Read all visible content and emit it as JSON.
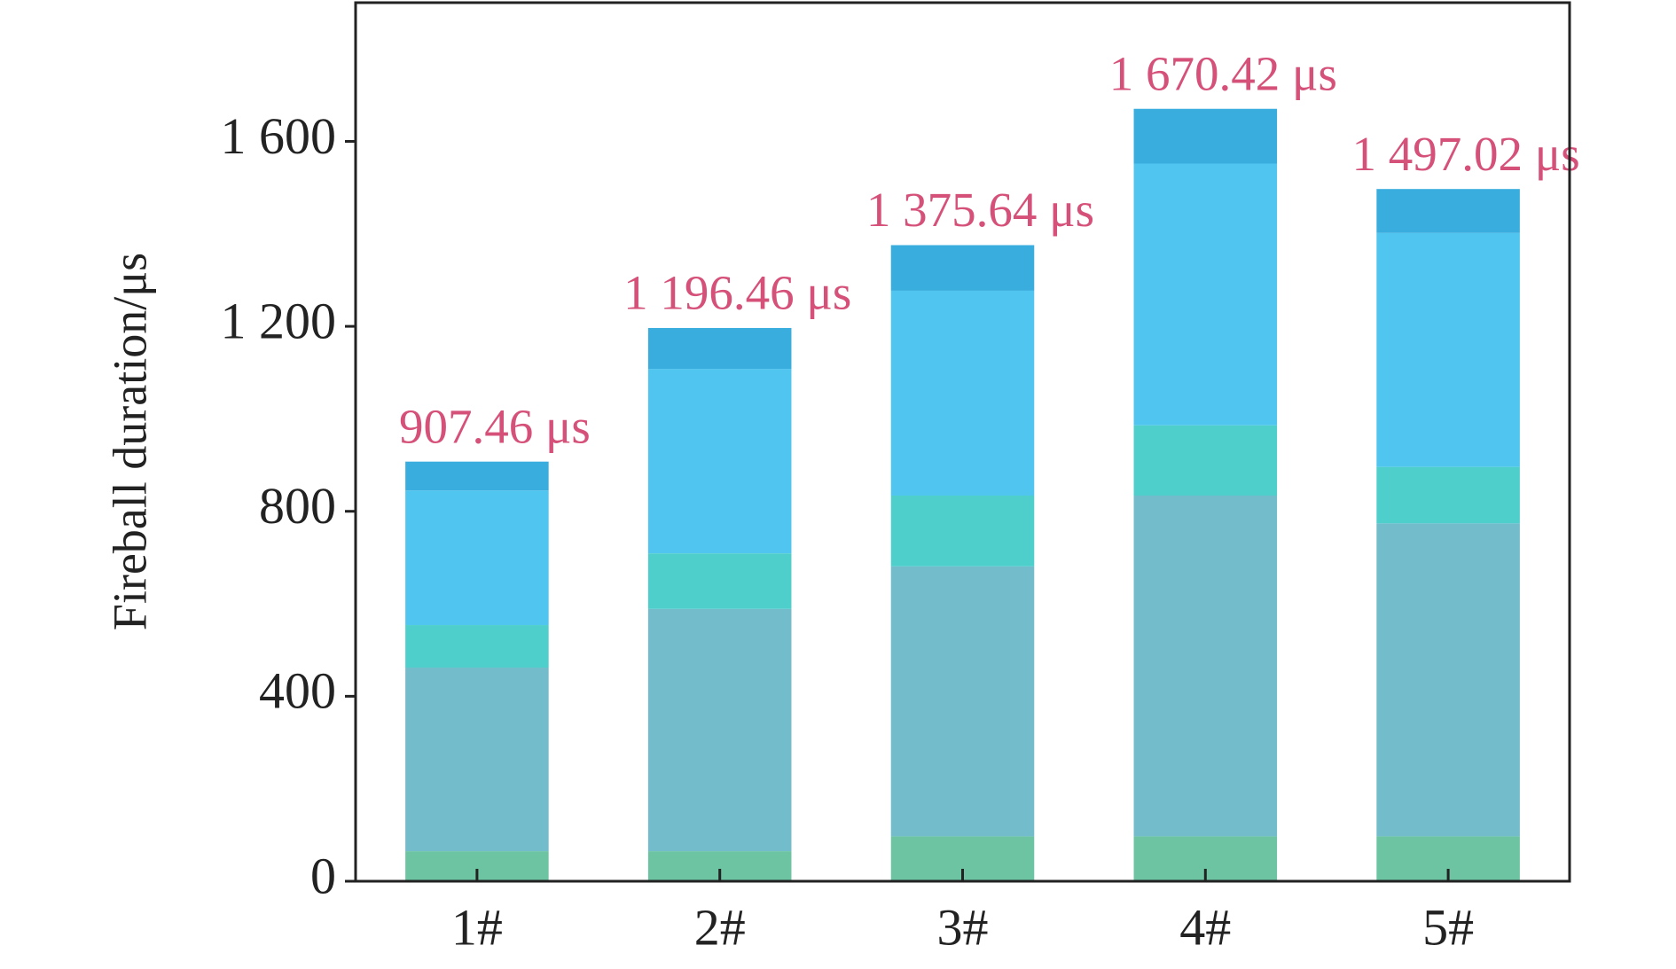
{
  "chart_data": {
    "type": "stacked_bar",
    "y_label": "Fireball duration/μs",
    "categories": [
      "1#",
      "2#",
      "3#",
      "4#",
      "5#"
    ],
    "series": [
      {
        "color": "#6cc4a2",
        "values": [
          65,
          65,
          97,
          97,
          97
        ]
      },
      {
        "color": "#72bccb",
        "values": [
          397,
          524,
          584,
          737,
          677
        ]
      },
      {
        "color": "#4ecfcb",
        "values": [
          92,
          120,
          153,
          152,
          122
        ]
      },
      {
        "color": "#4fc5f0",
        "values": [
          291,
          399,
          443,
          566,
          506
        ]
      },
      {
        "color": "#3aaddf",
        "values": [
          62.46,
          88.46,
          98.64,
          118.42,
          95.02
        ]
      }
    ],
    "totals": [
      907.46,
      1196.46,
      1375.64,
      1670.42,
      1497.02
    ],
    "total_labels": [
      "907.46 μs",
      "1 196.46 μs",
      "1 375.64 μs",
      "1 670.42 μs",
      "1 497.02 μs"
    ],
    "label_color": "#d6517a",
    "ylim": [
      0,
      1900
    ],
    "yticks": [
      0,
      400,
      800,
      {
        "value": 1200,
        "label": "1 200"
      },
      {
        "value": 1600,
        "label": "1 600"
      }
    ]
  }
}
